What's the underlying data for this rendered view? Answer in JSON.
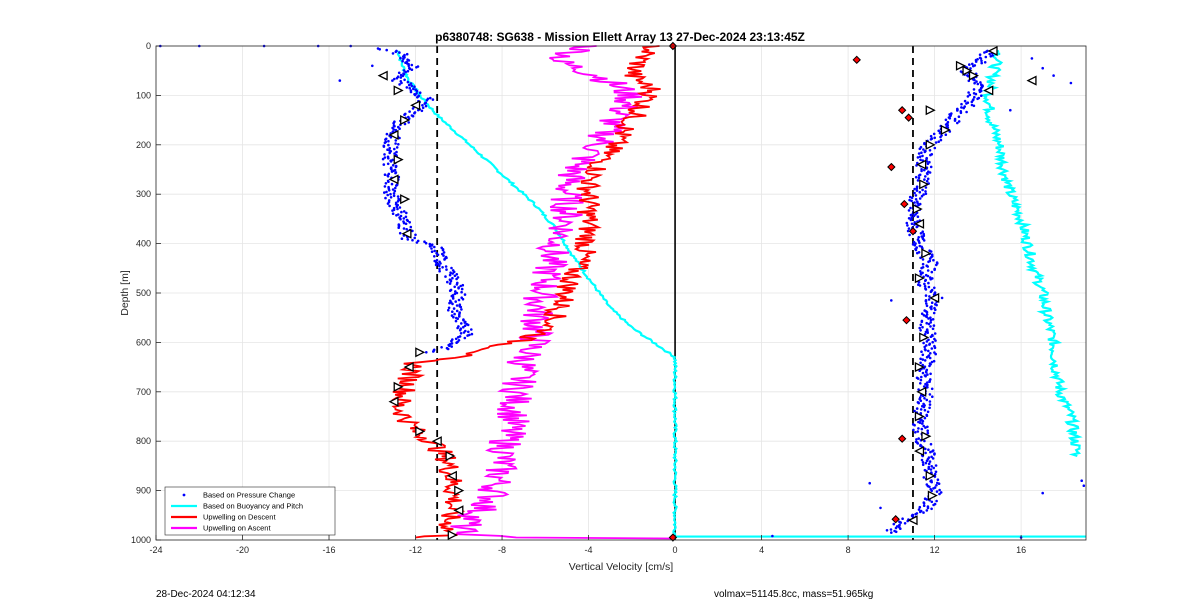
{
  "chart_data": {
    "type": "line",
    "title": "p6380748: SG638 - Mission Ellett Array 13 27-Dec-2024 23:13:45Z",
    "xlabel": "Vertical Velocity [cm/s]",
    "ylabel": "Depth [m]",
    "xlim": [
      -24,
      19
    ],
    "ylim": [
      0,
      1000
    ],
    "y_reversed": true,
    "grid": true,
    "xticks": [
      -24,
      -20,
      -16,
      -12,
      -8,
      -4,
      0,
      4,
      8,
      12,
      16
    ],
    "yticks": [
      0,
      100,
      200,
      300,
      400,
      500,
      600,
      700,
      800,
      900,
      1000
    ],
    "legend_position": "bottom-left",
    "reference_lines": {
      "dashed_x": [
        -11,
        11
      ],
      "solid_x": [
        0
      ]
    },
    "series": [
      {
        "name": "Based on Pressure Change",
        "color": "#0000ff",
        "style": "points",
        "descent": [
          [
            -13.5,
            5
          ],
          [
            -12.5,
            20
          ],
          [
            -12.2,
            40
          ],
          [
            -12.8,
            70
          ],
          [
            -12,
            90
          ],
          [
            -11.5,
            110
          ],
          [
            -11.8,
            125
          ],
          [
            -12.6,
            150
          ],
          [
            -13,
            180
          ],
          [
            -13.2,
            210
          ],
          [
            -13.2,
            240
          ],
          [
            -13,
            270
          ],
          [
            -13.2,
            300
          ],
          [
            -12.8,
            330
          ],
          [
            -12.5,
            360
          ],
          [
            -12.3,
            390
          ],
          [
            -11,
            410
          ],
          [
            -10.8,
            440
          ],
          [
            -10.3,
            470
          ],
          [
            -10,
            500
          ],
          [
            -10.2,
            530
          ],
          [
            -10,
            560
          ],
          [
            -9.5,
            580
          ],
          [
            -10.5,
            610
          ],
          [
            -11.5,
            620
          ]
        ],
        "ascent": [
          [
            14.5,
            10
          ],
          [
            14.2,
            30
          ],
          [
            13.5,
            50
          ],
          [
            14,
            80
          ],
          [
            13.8,
            110
          ],
          [
            13,
            140
          ],
          [
            12.5,
            170
          ],
          [
            11.7,
            200
          ],
          [
            11.5,
            240
          ],
          [
            11.5,
            280
          ],
          [
            11,
            320
          ],
          [
            11,
            360
          ],
          [
            11.3,
            400
          ],
          [
            11.8,
            440
          ],
          [
            11.5,
            480
          ],
          [
            12,
            510
          ],
          [
            11.6,
            550
          ],
          [
            11.7,
            590
          ],
          [
            11.7,
            630
          ],
          [
            11.5,
            670
          ],
          [
            11.6,
            710
          ],
          [
            11.3,
            750
          ],
          [
            11.4,
            790
          ],
          [
            11.7,
            830
          ],
          [
            11.8,
            870
          ],
          [
            12,
            910
          ],
          [
            11.5,
            940
          ],
          [
            10.5,
            960
          ],
          [
            10,
            985
          ]
        ]
      },
      {
        "name": "Based on Buoyancy and Pitch",
        "color": "#00ffff",
        "style": "line",
        "descent": [
          [
            -12.8,
            10
          ],
          [
            -12.6,
            40
          ],
          [
            -12.3,
            70
          ],
          [
            -11.8,
            100
          ],
          [
            -11,
            140
          ],
          [
            -9.5,
            200
          ],
          [
            -8,
            260
          ],
          [
            -6.5,
            320
          ],
          [
            -5.5,
            370
          ],
          [
            -4.8,
            420
          ],
          [
            -4,
            470
          ],
          [
            -3,
            530
          ],
          [
            -2,
            570
          ],
          [
            -1,
            600
          ],
          [
            0,
            630
          ],
          [
            0,
            700
          ],
          [
            0,
            800
          ],
          [
            0,
            900
          ],
          [
            0,
            990
          ]
        ],
        "ascent": [
          [
            15,
            10
          ],
          [
            14.7,
            60
          ],
          [
            14.5,
            100
          ],
          [
            14.6,
            150
          ],
          [
            15,
            200
          ],
          [
            15.2,
            250
          ],
          [
            15.5,
            300
          ],
          [
            16,
            350
          ],
          [
            16.3,
            400
          ],
          [
            16.6,
            450
          ],
          [
            17,
            500
          ],
          [
            17.2,
            550
          ],
          [
            17.5,
            600
          ],
          [
            17.6,
            650
          ],
          [
            17.8,
            700
          ],
          [
            18.3,
            750
          ],
          [
            18.5,
            800
          ],
          [
            18.6,
            830
          ]
        ]
      },
      {
        "name": "Upwelling on Descent",
        "color": "#ff0000",
        "style": "line",
        "values": [
          [
            -1,
            0
          ],
          [
            -1.5,
            20
          ],
          [
            -2,
            60
          ],
          [
            -1,
            90
          ],
          [
            -1.5,
            120
          ],
          [
            -2,
            150
          ],
          [
            -2.5,
            180
          ],
          [
            -3,
            210
          ],
          [
            -3.5,
            240
          ],
          [
            -4,
            280
          ],
          [
            -4,
            330
          ],
          [
            -4,
            370
          ],
          [
            -4.2,
            420
          ],
          [
            -4.8,
            470
          ],
          [
            -5.2,
            520
          ],
          [
            -6,
            580
          ],
          [
            -9,
            620
          ],
          [
            -12,
            640
          ],
          [
            -12.5,
            700
          ],
          [
            -12.8,
            730
          ],
          [
            -12,
            780
          ],
          [
            -11.2,
            800
          ],
          [
            -10.5,
            840
          ],
          [
            -10.3,
            880
          ],
          [
            -10.2,
            920
          ],
          [
            -10.5,
            960
          ],
          [
            -10.4,
            990
          ],
          [
            -12,
            995
          ]
        ]
      },
      {
        "name": "Upwelling on Ascent",
        "color": "#ff00ff",
        "style": "line",
        "values": [
          [
            -4,
            0
          ],
          [
            -5.5,
            30
          ],
          [
            -3.5,
            60
          ],
          [
            -2,
            100
          ],
          [
            -2.5,
            130
          ],
          [
            -3,
            160
          ],
          [
            -3.5,
            200
          ],
          [
            -4.5,
            240
          ],
          [
            -5,
            280
          ],
          [
            -5,
            320
          ],
          [
            -5,
            360
          ],
          [
            -5.5,
            400
          ],
          [
            -5.8,
            440
          ],
          [
            -6,
            480
          ],
          [
            -6.3,
            520
          ],
          [
            -6.4,
            560
          ],
          [
            -6.5,
            600
          ],
          [
            -7,
            640
          ],
          [
            -7.2,
            680
          ],
          [
            -7.4,
            720
          ],
          [
            -7.5,
            760
          ],
          [
            -7.8,
            800
          ],
          [
            -8,
            840
          ],
          [
            -8.2,
            880
          ],
          [
            -8.5,
            920
          ],
          [
            -9.5,
            960
          ],
          [
            -10,
            985
          ],
          [
            -8,
            995
          ],
          [
            0,
            997
          ]
        ]
      }
    ],
    "markers": {
      "black_triangles_descent": [
        [
          -13.5,
          60
        ],
        [
          -12.8,
          90
        ],
        [
          -12,
          120
        ],
        [
          -12.5,
          150
        ],
        [
          -13,
          180
        ],
        [
          -12.8,
          230
        ],
        [
          -13,
          270
        ],
        [
          -12.5,
          310
        ],
        [
          -12.4,
          380
        ],
        [
          -11.8,
          620
        ],
        [
          -12.3,
          650
        ],
        [
          -12.8,
          690
        ],
        [
          -13,
          720
        ],
        [
          -11.8,
          780
        ],
        [
          -11,
          800
        ],
        [
          -10.4,
          830
        ],
        [
          -10.3,
          870
        ],
        [
          -10,
          900
        ],
        [
          -10,
          940
        ],
        [
          -10.3,
          990
        ]
      ],
      "black_triangles_ascent": [
        [
          14.7,
          10
        ],
        [
          13.5,
          50
        ],
        [
          13.8,
          60
        ],
        [
          14.5,
          90
        ],
        [
          12.5,
          170
        ],
        [
          11.8,
          200
        ],
        [
          11.4,
          240
        ],
        [
          11.5,
          280
        ],
        [
          11.2,
          330
        ],
        [
          11.3,
          360
        ],
        [
          11.6,
          420
        ],
        [
          11.3,
          470
        ],
        [
          12,
          510
        ],
        [
          11.5,
          590
        ],
        [
          11.3,
          650
        ],
        [
          11.4,
          700
        ],
        [
          11.3,
          750
        ],
        [
          11.6,
          790
        ],
        [
          11.3,
          820
        ],
        [
          11.8,
          870
        ],
        [
          11.9,
          910
        ],
        [
          11,
          960
        ],
        [
          11.8,
          130
        ],
        [
          13.2,
          40
        ],
        [
          16.5,
          70
        ]
      ],
      "red_diamonds": [
        [
          8.4,
          28
        ],
        [
          10.5,
          130
        ],
        [
          10.8,
          145
        ],
        [
          10,
          245
        ],
        [
          10.6,
          320
        ],
        [
          11,
          375
        ],
        [
          10.7,
          555
        ],
        [
          10.5,
          795
        ],
        [
          10.2,
          958
        ],
        [
          -0.1,
          0
        ],
        [
          -0.1,
          995
        ]
      ]
    }
  },
  "footer": {
    "left": "28-Dec-2024 04:12:34",
    "right": "volmax=51145.8cc, mass=51.965kg"
  }
}
